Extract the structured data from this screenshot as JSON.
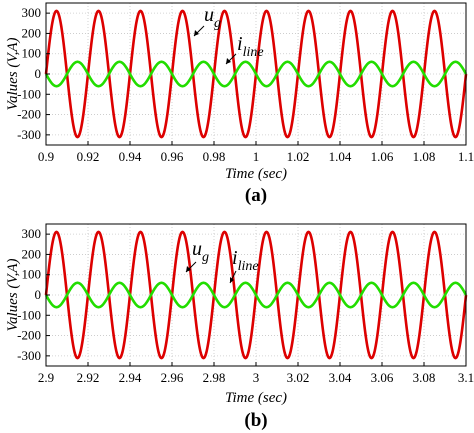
{
  "colors": {
    "u_g": "#dd0000",
    "i_line": "#22dd00",
    "grid": "#c8c8c8",
    "axis": "#000000"
  },
  "chart_data": [
    {
      "type": "line",
      "panel_label": "(a)",
      "xlabel": "Time (sec)",
      "ylabel": "Values (V,A)",
      "xlim": [
        0.9,
        1.1
      ],
      "ylim": [
        -350,
        350
      ],
      "xticks": [
        "0.9",
        "0.92",
        "0.94",
        "0.96",
        "0.98",
        "1",
        "1.02",
        "1.04",
        "1.06",
        "1.08",
        "1.1"
      ],
      "yticks": [
        "300",
        "200",
        "100",
        "0",
        "-100",
        "-200",
        "-300"
      ],
      "grid": true,
      "series": [
        {
          "name": "u_g",
          "label_main": "u",
          "label_sub": "g",
          "color_key": "u_g",
          "amplitude": 311,
          "frequency_hz": 50,
          "phase_deg": 0
        },
        {
          "name": "i_line",
          "label_main": "i",
          "label_sub": "line",
          "color_key": "i_line",
          "amplitude": 60,
          "frequency_hz": 50,
          "phase_deg": 180
        }
      ]
    },
    {
      "type": "line",
      "panel_label": "(b)",
      "xlabel": "Time (sec)",
      "ylabel": "Values (V,A)",
      "xlim": [
        2.9,
        3.1
      ],
      "ylim": [
        -350,
        350
      ],
      "xticks": [
        "2.9",
        "2.92",
        "2.94",
        "2.96",
        "2.98",
        "3",
        "3.02",
        "3.04",
        "3.06",
        "3.08",
        "3.1"
      ],
      "yticks": [
        "300",
        "200",
        "100",
        "0",
        "-100",
        "-200",
        "-300"
      ],
      "grid": true,
      "series": [
        {
          "name": "u_g",
          "label_main": "u",
          "label_sub": "g",
          "color_key": "u_g",
          "amplitude": 311,
          "frequency_hz": 50,
          "phase_deg": 0
        },
        {
          "name": "i_line",
          "label_main": "i",
          "label_sub": "line",
          "color_key": "i_line",
          "amplitude": 60,
          "frequency_hz": 50,
          "phase_deg": 180
        }
      ]
    }
  ]
}
